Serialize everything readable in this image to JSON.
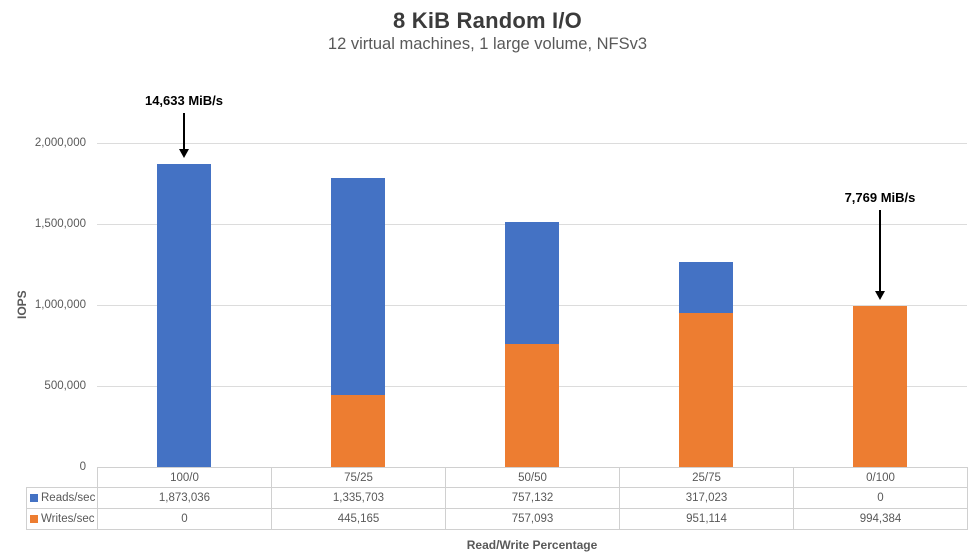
{
  "chart_data": {
    "type": "bar",
    "stacked": true,
    "title": "8 KiB Random I/O",
    "subtitle": "12 virtual machines, 1 large volume, NFSv3",
    "xlabel": "Read/Write Percentage",
    "ylabel": "IOPS",
    "categories": [
      "100/0",
      "75/25",
      "50/50",
      "25/75",
      "0/100"
    ],
    "series": [
      {
        "name": "Reads/sec",
        "color": "#4472C4",
        "values": [
          1873036,
          1335703,
          757132,
          317023,
          0
        ],
        "values_formatted": [
          "1,873,036",
          "1,335,703",
          "757,132",
          "317,023",
          "0"
        ]
      },
      {
        "name": "Writes/sec",
        "color": "#ED7D31",
        "values": [
          0,
          445165,
          757093,
          951114,
          994384
        ],
        "values_formatted": [
          "0",
          "445,165",
          "757,093",
          "951,114",
          "994,384"
        ]
      }
    ],
    "ylim": [
      0,
      2000000
    ],
    "yticks": [
      {
        "value": 0,
        "label": "0"
      },
      {
        "value": 500000,
        "label": "500,000"
      },
      {
        "value": 1000000,
        "label": "1,000,000"
      },
      {
        "value": 1500000,
        "label": "1,500,000"
      },
      {
        "value": 2000000,
        "label": "2,000,000"
      }
    ],
    "grid": "horizontal",
    "legend_position": "data-table-left",
    "annotations": [
      {
        "text": "14,633 MiB/s",
        "category_index": 0
      },
      {
        "text": "7,769 MiB/s",
        "category_index": 4
      }
    ]
  }
}
